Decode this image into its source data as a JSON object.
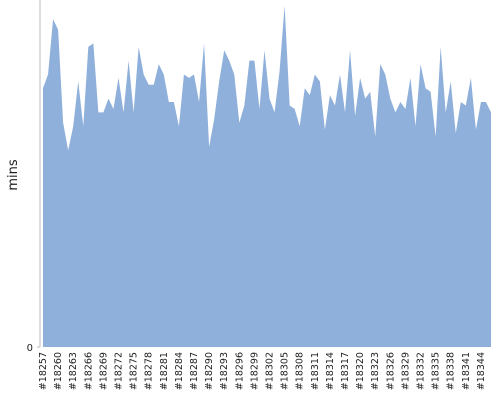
{
  "chart_data": {
    "type": "area",
    "ylabel": "mins",
    "color": "#8fb0db",
    "ylim": [
      0,
      100
    ],
    "yticks": [
      0
    ],
    "categories": [
      "#18257",
      null,
      null,
      "#18260",
      null,
      null,
      "#18263",
      null,
      null,
      "#18266",
      null,
      null,
      "#18269",
      null,
      null,
      "#18272",
      null,
      null,
      "#18275",
      null,
      null,
      "#18278",
      null,
      null,
      "#18281",
      null,
      null,
      "#18284",
      null,
      null,
      "#18287",
      null,
      null,
      "#18290",
      null,
      null,
      "#18293",
      null,
      null,
      "#18296",
      null,
      null,
      "#18299",
      null,
      null,
      "#18302",
      null,
      null,
      "#18305",
      null,
      null,
      "#18308",
      null,
      null,
      "#18311",
      null,
      null,
      "#18314",
      null,
      null,
      "#18317",
      null,
      null,
      "#18320",
      null,
      null,
      "#18323",
      null,
      null,
      "#18326",
      null,
      null,
      "#18329",
      null,
      null,
      "#18332",
      null,
      null,
      "#18335",
      null,
      null,
      "#18338",
      null,
      null,
      "#18341",
      null,
      null,
      "#18344",
      null,
      null
    ],
    "values": [
      75,
      79,
      95,
      92,
      65,
      57,
      64,
      77,
      64,
      87,
      88,
      68,
      68,
      72,
      69,
      78,
      68,
      83,
      68,
      87,
      79,
      76,
      76,
      82,
      79,
      71,
      71,
      64,
      79,
      78,
      79,
      71,
      88,
      58,
      66,
      77,
      86,
      83,
      79,
      65,
      70,
      83,
      83,
      69,
      86,
      72,
      68,
      80,
      99,
      70,
      69,
      64,
      75,
      73,
      79,
      77,
      63,
      73,
      70,
      79,
      68,
      86,
      67,
      78,
      72,
      74,
      61,
      82,
      79,
      72,
      68,
      71,
      69,
      78,
      64,
      82,
      75,
      74,
      61,
      87,
      68,
      77,
      62,
      71,
      70,
      78,
      63,
      71,
      71,
      68
    ]
  }
}
